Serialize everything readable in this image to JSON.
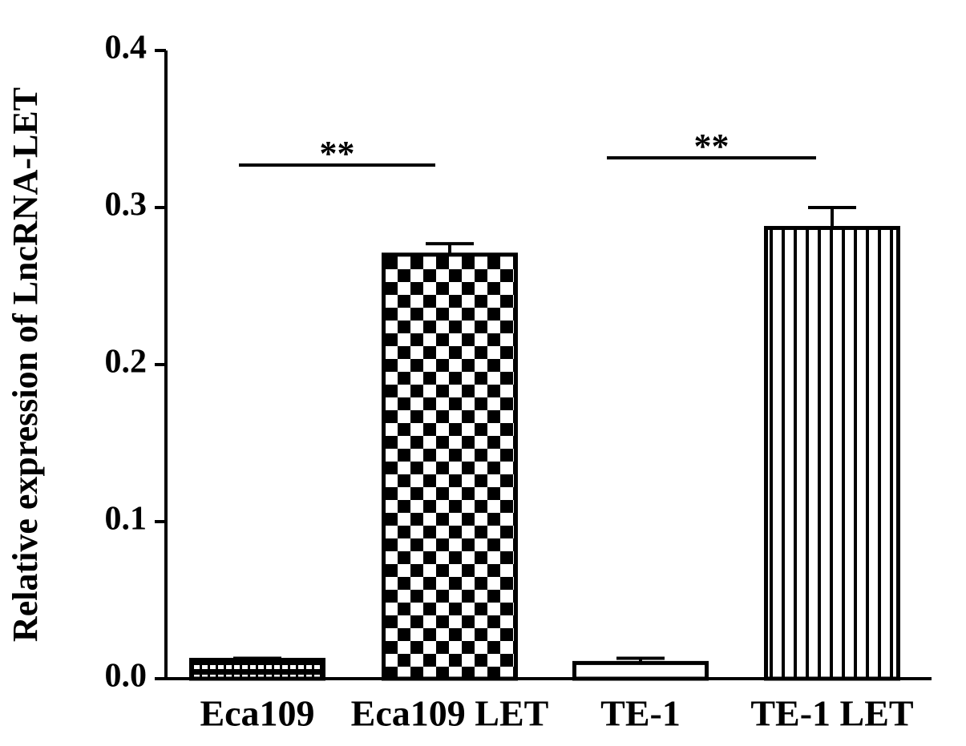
{
  "chart_data": {
    "type": "bar",
    "y_label": "Relative expression of LncRNA-LET",
    "categories": [
      "Eca109",
      "Eca109 LET",
      "TE-1",
      "TE-1 LET"
    ],
    "values": [
      0.012,
      0.27,
      0.01,
      0.287
    ],
    "errors": [
      0.001,
      0.007,
      0.003,
      0.013
    ],
    "color": "#000000",
    "ylim": [
      0,
      0.4
    ],
    "yticks": [
      {
        "value": 0,
        "label": "0.0"
      },
      0.1,
      0.2,
      0.3,
      0.4
    ],
    "annotations": [
      "**",
      "**"
    ],
    "grid": false
  }
}
